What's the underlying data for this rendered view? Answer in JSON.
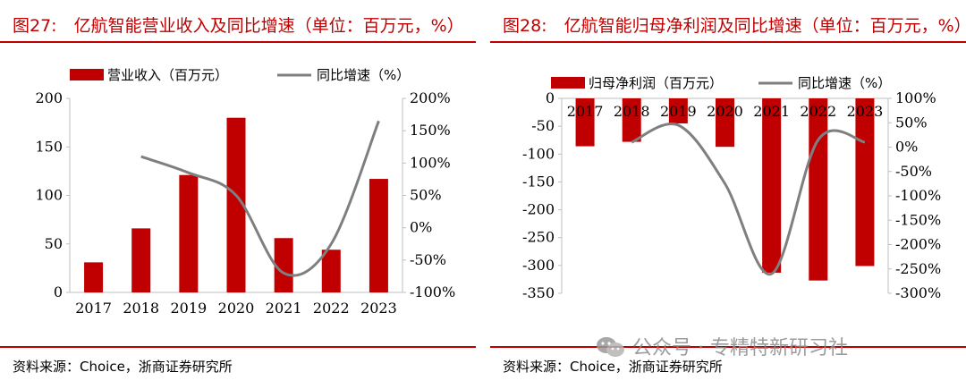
{
  "panels": [
    {
      "title": "图27:　亿航智能营业收入及同比增速（单位：百万元，%）",
      "source": "资料来源：Choice，浙商证券研究所"
    },
    {
      "title": "图28:　亿航智能归母净利润及同比增速（单位：百万元，%）",
      "source": "资料来源：Choice，浙商证券研究所"
    }
  ],
  "watermark": "公众号 · 专精特新研习社",
  "colors": {
    "bar": "#c00000",
    "line": "#7f7f7f",
    "accent": "#c00000"
  },
  "chart_data": [
    {
      "type": "bar",
      "categories": [
        "2017",
        "2018",
        "2019",
        "2020",
        "2021",
        "2022",
        "2023"
      ],
      "series": [
        {
          "name": "营业收入（百万元）",
          "kind": "bar",
          "axis": "left",
          "values": [
            31,
            66,
            121,
            180,
            56,
            44,
            117
          ]
        },
        {
          "name": "同比增速（%）",
          "kind": "line",
          "axis": "right",
          "values": [
            null,
            110,
            85,
            50,
            -70,
            -25,
            165
          ]
        }
      ],
      "ylim_left": [
        0,
        200
      ],
      "yticks_left": [
        0,
        50,
        100,
        150,
        200
      ],
      "ytick_labels_left": [
        "0",
        "50",
        "100",
        "150",
        "200"
      ],
      "ylim_right": [
        -100,
        200
      ],
      "yticks_right": [
        -100,
        -50,
        0,
        50,
        100,
        150,
        200
      ],
      "ytick_labels_right": [
        "-100%",
        "-50%",
        "0%",
        "50%",
        "100%",
        "150%",
        "200%"
      ],
      "legend_position": "top"
    },
    {
      "type": "bar",
      "categories": [
        "2017",
        "2018",
        "2019",
        "2020",
        "2021",
        "2022",
        "2023"
      ],
      "series": [
        {
          "name": "归母净利润（百万元）",
          "kind": "bar",
          "axis": "left",
          "values": [
            -86,
            -78,
            -45,
            -87,
            -313,
            -327,
            -301
          ]
        },
        {
          "name": "同比增速（%）",
          "kind": "line",
          "axis": "right",
          "values": [
            null,
            10,
            45,
            -75,
            -260,
            15,
            10
          ]
        }
      ],
      "ylim_left": [
        -350,
        0
      ],
      "yticks_left": [
        -350,
        -300,
        -250,
        -200,
        -150,
        -100,
        -50,
        0
      ],
      "ytick_labels_left": [
        "-350",
        "-300",
        "-250",
        "-200",
        "-150",
        "-100",
        "-50",
        "0"
      ],
      "ylim_right": [
        -300,
        100
      ],
      "yticks_right": [
        -300,
        -250,
        -200,
        -150,
        -100,
        -50,
        0,
        50,
        100
      ],
      "ytick_labels_right": [
        "-300%",
        "-250%",
        "-200%",
        "-150%",
        "-100%",
        "-50%",
        "0%",
        "50%",
        "100%"
      ],
      "legend_position": "top"
    }
  ]
}
